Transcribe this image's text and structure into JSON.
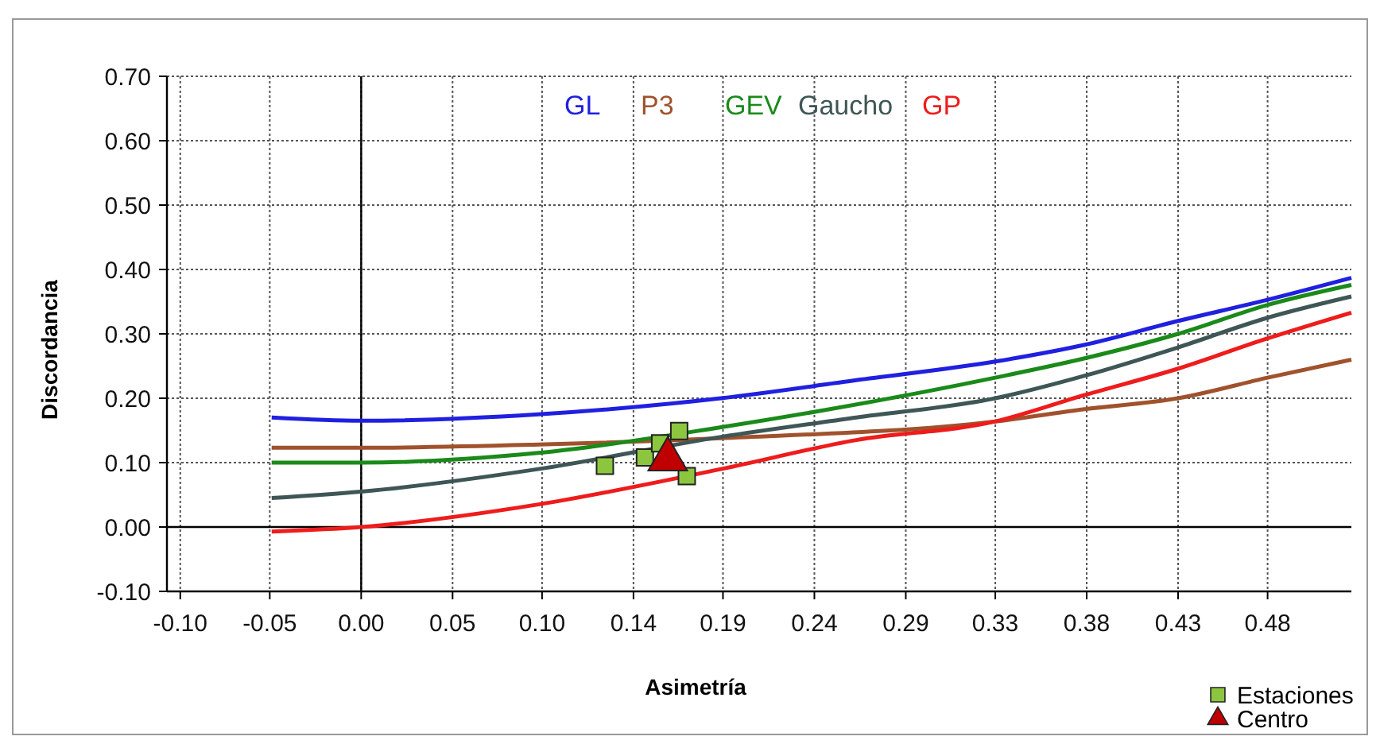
{
  "chart_data": {
    "type": "line",
    "xlabel": "Asimetría",
    "ylabel": "Discordancia",
    "xlim": [
      -0.102,
      0.52
    ],
    "ylim": [
      -0.1,
      0.7
    ],
    "xticks": [
      {
        "value": -0.095,
        "label": "-0.10"
      },
      {
        "value": -0.048,
        "label": "-0.05"
      },
      {
        "value": 0,
        "label": "0.00"
      },
      {
        "value": 0.048,
        "label": "0.05"
      },
      {
        "value": 0.095,
        "label": "0.10"
      },
      {
        "value": 0.143,
        "label": "0.14"
      },
      {
        "value": 0.19,
        "label": "0.19"
      },
      {
        "value": 0.238,
        "label": "0.24"
      },
      {
        "value": 0.286,
        "label": "0.29"
      },
      {
        "value": 0.333,
        "label": "0.33"
      },
      {
        "value": 0.381,
        "label": "0.38"
      },
      {
        "value": 0.429,
        "label": "0.43"
      },
      {
        "value": 0.476,
        "label": "0.48"
      }
    ],
    "yticks": [
      {
        "value": -0.1,
        "label": "-0.10"
      },
      {
        "value": 0,
        "label": "0.00"
      },
      {
        "value": 0.1,
        "label": "0.10"
      },
      {
        "value": 0.2,
        "label": "0.20"
      },
      {
        "value": 0.3,
        "label": "0.30"
      },
      {
        "value": 0.4,
        "label": "0.40"
      },
      {
        "value": 0.5,
        "label": "0.50"
      },
      {
        "value": 0.6,
        "label": "0.60"
      },
      {
        "value": 0.7,
        "label": "0.70"
      }
    ],
    "grid": true,
    "legend": "bottom right",
    "marker": "none",
    "line_style": "solid",
    "series": [
      {
        "name": "GL",
        "color": "#2020e0",
        "x": [
          -0.047,
          0,
          0.093,
          0.189,
          0.26,
          0.333,
          0.38,
          0.429,
          0.476,
          0.52
        ],
        "values": [
          0.17,
          0.165,
          0.175,
          0.2,
          0.228,
          0.257,
          0.283,
          0.32,
          0.353,
          0.387
        ]
      },
      {
        "name": "P3",
        "color": "#a0522d",
        "x": [
          -0.047,
          0,
          0.093,
          0.189,
          0.333,
          0.38,
          0.429,
          0.476,
          0.52
        ],
        "values": [
          0.123,
          0.123,
          0.128,
          0.138,
          0.164,
          0.183,
          0.2,
          0.232,
          0.26
        ]
      },
      {
        "name": "GEV",
        "color": "#1a8a1a",
        "x": [
          -0.047,
          0,
          0.093,
          0.189,
          0.333,
          0.38,
          0.429,
          0.476,
          0.52
        ],
        "values": [
          0.1,
          0.1,
          0.115,
          0.155,
          0.232,
          0.262,
          0.3,
          0.345,
          0.376
        ]
      },
      {
        "name": "Gaucho",
        "color": "#3f5656",
        "x": [
          -0.047,
          0,
          0.093,
          0.189,
          0.26,
          0.333,
          0.38,
          0.429,
          0.476,
          0.52
        ],
        "values": [
          0.045,
          0.055,
          0.09,
          0.14,
          0.17,
          0.2,
          0.235,
          0.279,
          0.325,
          0.358
        ]
      },
      {
        "name": "GP",
        "color": "#ee1c1c",
        "x": [
          -0.047,
          0,
          0.093,
          0.189,
          0.26,
          0.333,
          0.38,
          0.429,
          0.476,
          0.52
        ],
        "values": [
          -0.007,
          0,
          0.035,
          0.09,
          0.135,
          0.164,
          0.205,
          0.246,
          0.293,
          0.333
        ]
      },
      {
        "name": "Estaciones",
        "type": "scatter",
        "marker": "square",
        "color": "#8cc63f",
        "x": [
          0.128,
          0.149,
          0.157,
          0.167,
          0.171
        ],
        "values": [
          0.095,
          0.108,
          0.13,
          0.149,
          0.079
        ]
      },
      {
        "name": "Centro",
        "type": "scatter",
        "marker": "triangle",
        "color": "#c00000",
        "x": [
          0.161
        ],
        "values": [
          0.105
        ]
      }
    ]
  }
}
